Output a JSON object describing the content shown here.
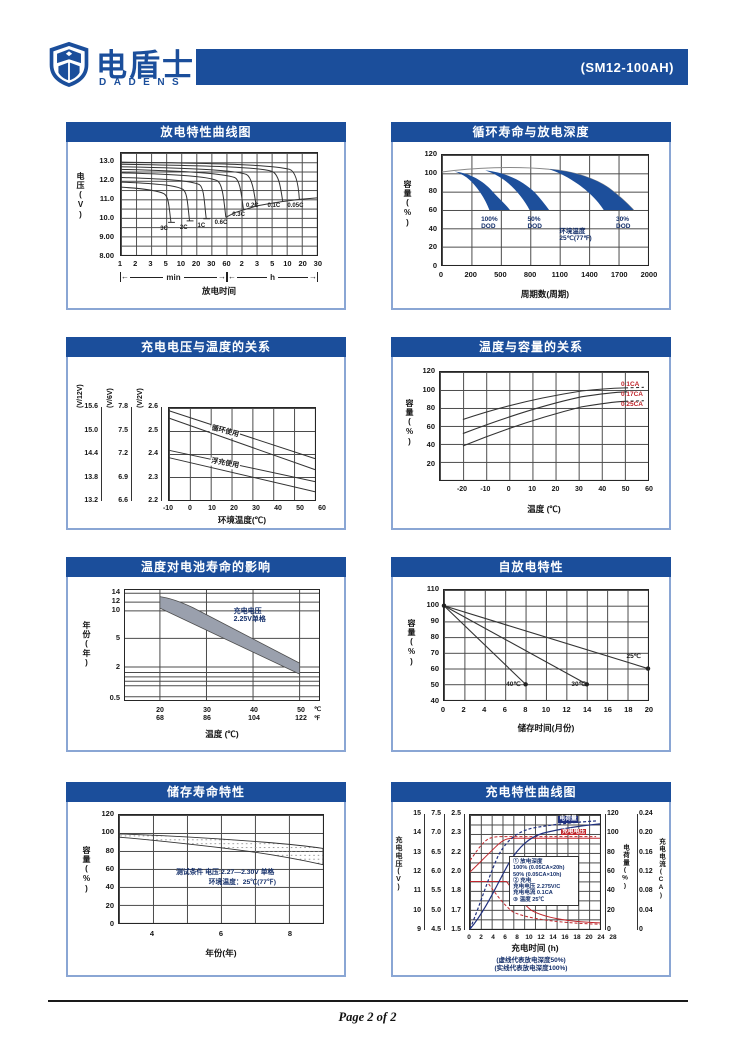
{
  "header": {
    "brand_cn": "电盾士",
    "brand_en": "DADENS",
    "model_label": "(SM12-100AH)"
  },
  "footer": {
    "page_label": "Page 2 of 2"
  },
  "colors": {
    "brand_blue": "#1b4e9b",
    "panel_border": "#8aa6d4",
    "band_blue": "#1d4f9b",
    "accent_red": "#c0272d",
    "curve_navy": "#20307e"
  },
  "chart_data": {
    "discharge": {
      "type": "line",
      "title": "放电特性曲线图",
      "ylabel": "电压(V)",
      "xlabel": "放电时间",
      "x_unit_segments": [
        "min",
        "h"
      ],
      "y_ticks": [
        "13.0",
        "12.0",
        "11.0",
        "10.0",
        "9.00",
        "8.00"
      ],
      "x_ticks": [
        "1",
        "2",
        "3",
        "5",
        "10",
        "20",
        "30",
        "60",
        "2",
        "3",
        "5",
        "10",
        "20",
        "30"
      ],
      "series": [
        {
          "name": "3C",
          "start_v": 11.6,
          "end_v": 9.6,
          "end_time": "6 min"
        },
        {
          "name": "2C",
          "start_v": 11.9,
          "end_v": 9.7,
          "end_time": "12 min"
        },
        {
          "name": "1C",
          "start_v": 12.15,
          "end_v": 9.8,
          "end_time": "30 min"
        },
        {
          "name": "0.6C",
          "start_v": 12.4,
          "end_v": 9.9,
          "end_time": "60 min"
        },
        {
          "name": "0.3C",
          "start_v": 12.6,
          "end_v": 10.3,
          "end_time": "2.5 h"
        },
        {
          "name": "0.2C",
          "start_v": 12.75,
          "end_v": 10.5,
          "end_time": "3.5 h"
        },
        {
          "name": "0.1C",
          "start_v": 12.9,
          "end_v": 10.8,
          "end_time": "10 h"
        },
        {
          "name": "0.05C",
          "start_v": 13.05,
          "end_v": 10.9,
          "end_time": "20 h"
        }
      ]
    },
    "cycle_life": {
      "type": "area",
      "title": "循环寿命与放电深度",
      "ylabel": "容量(%)",
      "xlabel": "周期数(周期)",
      "y_ticks": [
        "120",
        "100",
        "80",
        "60",
        "40",
        "20",
        "0"
      ],
      "x_ticks": [
        "0",
        "200",
        "500",
        "800",
        "1100",
        "1400",
        "1700",
        "2000"
      ],
      "note": "环境温度\n25℃(77℉)",
      "bands": [
        {
          "label": "100%\nDOD",
          "capacity_start_pct": 103,
          "cycles_to_60pct": [
            460,
            660
          ]
        },
        {
          "label": "50%\nDOD",
          "capacity_start_pct": 103,
          "cycles_to_60pct": [
            850,
            1040
          ]
        },
        {
          "label": "30%\nDOD",
          "capacity_start_pct": 104,
          "cycles_to_60pct": [
            1570,
            1860
          ]
        }
      ]
    },
    "charge_voltage": {
      "type": "line",
      "title": "充电电压与温度的关系",
      "xlabel": "环境温度(℃)",
      "x_ticks": [
        "-10",
        "0",
        "10",
        "20",
        "30",
        "40",
        "50",
        "60"
      ],
      "scales": [
        {
          "header": "(V/12V)",
          "ticks": [
            "15.6",
            "15.0",
            "14.4",
            "13.8",
            "13.2"
          ]
        },
        {
          "header": "(V/6V)",
          "ticks": [
            "7.8",
            "7.5",
            "7.2",
            "6.9",
            "6.6"
          ]
        },
        {
          "header": "(V/2V)",
          "ticks": [
            "2.6",
            "2.5",
            "2.4",
            "2.3",
            "2.2"
          ]
        }
      ],
      "bands": [
        {
          "label": "循环使用",
          "v_per_cell_at_-10C": [
            2.56,
            2.6
          ],
          "v_per_cell_at_60C": [
            2.28,
            2.33
          ]
        },
        {
          "label": "浮充使用",
          "v_per_cell_at_-10C": [
            2.38,
            2.42
          ],
          "v_per_cell_at_60C": [
            2.19,
            2.24
          ]
        }
      ]
    },
    "temp_capacity": {
      "type": "line",
      "title": "温度与容量的关系",
      "ylabel": "容量(%)",
      "xlabel": "温度 (℃)",
      "y_ticks": [
        "120",
        "100",
        "80",
        "60",
        "40",
        "20"
      ],
      "x_ticks": [
        "-20",
        "-10",
        "0",
        "10",
        "20",
        "30",
        "40",
        "50",
        "60"
      ],
      "series": [
        {
          "name": "0.1CA",
          "points": [
            [
              -20,
              68
            ],
            [
              0,
              84
            ],
            [
              20,
              95
            ],
            [
              40,
              102
            ],
            [
              50,
              104
            ]
          ]
        },
        {
          "name": "0.17CA",
          "points": [
            [
              -20,
              52
            ],
            [
              0,
              72
            ],
            [
              20,
              87
            ],
            [
              40,
              97
            ],
            [
              50,
              100
            ]
          ]
        },
        {
          "name": "0.25CA",
          "points": [
            [
              -20,
              38
            ],
            [
              0,
              60
            ],
            [
              20,
              76
            ],
            [
              40,
              86
            ],
            [
              50,
              89
            ]
          ]
        }
      ]
    },
    "life_temp": {
      "type": "area",
      "title": "温度对电池寿命的影响",
      "ylabel": "年份(年)",
      "xlabel": "温度 (℃)",
      "y_ticks": [
        "14",
        "12",
        "10",
        "5",
        "2",
        "0.5"
      ],
      "x_pairs": [
        {
          "c": "20",
          "f": "68"
        },
        {
          "c": "30",
          "f": "86"
        },
        {
          "c": "40",
          "f": "104"
        },
        {
          "c": "50",
          "f": "122"
        }
      ],
      "x_units": {
        "c": "℃",
        "f": "℉"
      },
      "note": "充电电压\n2.25V单格",
      "band": {
        "years_at_20C": [
          11,
          13
        ],
        "years_at_50C": [
          1.9,
          2.6
        ]
      }
    },
    "self_discharge": {
      "type": "line",
      "title": "自放电特性",
      "ylabel": "容量(%)",
      "xlabel": "储存时间(月份)",
      "y_ticks": [
        "110",
        "100",
        "90",
        "80",
        "70",
        "60",
        "50",
        "40"
      ],
      "x_ticks": [
        "0",
        "2",
        "4",
        "6",
        "8",
        "10",
        "12",
        "14",
        "16",
        "18",
        "20"
      ],
      "series": [
        {
          "name": "40℃",
          "points": [
            [
              0,
              100
            ],
            [
              8,
              50
            ]
          ]
        },
        {
          "name": "30℃",
          "points": [
            [
              0,
              100
            ],
            [
              14,
              50
            ]
          ]
        },
        {
          "name": "25℃",
          "points": [
            [
              0,
              100
            ],
            [
              20,
              60
            ]
          ]
        }
      ]
    },
    "storage_life": {
      "type": "area",
      "title": "储存寿命特性",
      "ylabel": "容量(%)",
      "xlabel": "年份(年)",
      "y_ticks": [
        "120",
        "100",
        "80",
        "60",
        "40",
        "20",
        "0"
      ],
      "x_ticks": [
        "4",
        "6",
        "8"
      ],
      "note_line1": "测试条件 电压:2.27—2.30V 单格",
      "note_line2": "环境温度：25℃(77℉)",
      "band": {
        "capacity_pct_at_year3": [
          97,
          100
        ],
        "capacity_pct_at_year9": [
          65,
          84
        ]
      }
    },
    "charging": {
      "type": "line",
      "title": "充电特性曲线图",
      "xlabel": "充电时间 (h)",
      "left_axis_label": "充电电压(V)",
      "left_scales": [
        {
          "ticks": [
            "15",
            "14",
            "13",
            "12",
            "11",
            "10",
            "9"
          ]
        },
        {
          "ticks": [
            "7.5",
            "7.0",
            "6.5",
            "6.0",
            "5.5",
            "5.0",
            "4.5"
          ]
        },
        {
          "ticks": [
            "2.5",
            "2.3",
            "2.2",
            "2.0",
            "1.8",
            "1.7",
            "1.5"
          ]
        }
      ],
      "right_axis1": {
        "label": "电荷量(%)",
        "ticks": [
          "120",
          "100",
          "80",
          "60",
          "40",
          "20",
          "0"
        ]
      },
      "right_axis2": {
        "label": "充电电流(CA)",
        "ticks": [
          "0.24",
          "0.20",
          "0.16",
          "0.12",
          "0.08",
          "0.04",
          "0"
        ]
      },
      "x_ticks": [
        "0",
        "2",
        "4",
        "6",
        "8",
        "10",
        "12",
        "14",
        "16",
        "18",
        "20",
        "24",
        "28"
      ],
      "curve_labels": {
        "charge_quantity": "电荷量",
        "charge_voltage": "充电电压",
        "charge_current": "充电电流"
      },
      "legend_lines": "① 放电深度\n100% (0.05CA×20h)\n50%  (0.05CA×10h)\n② 充电\n充电电压 2.275V/C\n充电电流 0.1CA\n③ 温度  25℃",
      "footnote1": "(虚线代表放电深度50%)",
      "footnote2": "(实线代表放电深度100%)"
    }
  }
}
